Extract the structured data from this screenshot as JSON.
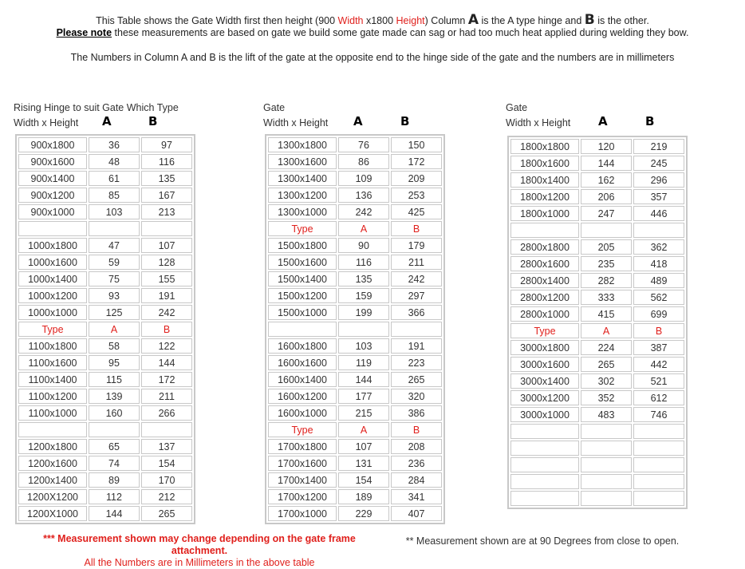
{
  "intro": {
    "line1_a": "This Table shows the Gate Width first then height (900 ",
    "line1_width": "Width",
    "line1_b": " x1800 ",
    "line1_height": "Height",
    "line1_c": ") Column ",
    "line1_A": "A",
    "line1_d": " is the A type hinge and ",
    "line1_B": "B",
    "line1_e": " is the other.",
    "line2_note": "Please note",
    "line2_rest": " these measurements are based on gate we build some gate made can sag or had too much heat applied during welding they bow.",
    "line3": "The Numbers in Column A and B is the lift of the gate at the opposite end to the hinge side of the gate and the numbers are in millimeters"
  },
  "tables": [
    {
      "caption": "Rising Hinge to suit Gate Which Type",
      "subheader": "Width x Height",
      "colA": "A",
      "colB": "B",
      "rows": [
        [
          "900x1800",
          "36",
          "97"
        ],
        [
          "900x1600",
          "48",
          "116"
        ],
        [
          "900x1400",
          "61",
          "135"
        ],
        [
          "900x1200",
          "85",
          "167"
        ],
        [
          "900x1000",
          "103",
          "213"
        ],
        [
          "",
          "",
          ""
        ],
        [
          "1000x1800",
          "47",
          "107"
        ],
        [
          "1000x1600",
          "59",
          "128"
        ],
        [
          "1000x1400",
          "75",
          "155"
        ],
        [
          "1000x1200",
          "93",
          "191"
        ],
        [
          "1000x1000",
          "125",
          "242"
        ],
        [
          "Type",
          "A",
          "B"
        ],
        [
          "1100x1800",
          "58",
          "122"
        ],
        [
          "1100x1600",
          "95",
          "144"
        ],
        [
          "1100x1400",
          "115",
          "172"
        ],
        [
          "1100x1200",
          "139",
          "211"
        ],
        [
          "1100x1000",
          "160",
          "266"
        ],
        [
          "",
          "",
          ""
        ],
        [
          "1200x1800",
          "65",
          "137"
        ],
        [
          "1200x1600",
          "74",
          "154"
        ],
        [
          "1200x1400",
          "89",
          "170"
        ],
        [
          "1200X1200",
          "112",
          "212"
        ],
        [
          "1200X1000",
          "144",
          "265"
        ]
      ]
    },
    {
      "caption": "Gate",
      "subheader": "Width x Height",
      "colA": "A",
      "colB": "B",
      "rows": [
        [
          "1300x1800",
          "76",
          "150"
        ],
        [
          "1300x1600",
          "86",
          "172"
        ],
        [
          "1300x1400",
          "109",
          "209"
        ],
        [
          "1300x1200",
          "136",
          "253"
        ],
        [
          "1300x1000",
          "242",
          "425"
        ],
        [
          "Type",
          "A",
          "B"
        ],
        [
          "1500x1800",
          "90",
          "179"
        ],
        [
          "1500x1600",
          "116",
          "211"
        ],
        [
          "1500x1400",
          "135",
          "242"
        ],
        [
          "1500x1200",
          "159",
          "297"
        ],
        [
          "1500x1000",
          "199",
          "366"
        ],
        [
          "",
          "",
          ""
        ],
        [
          "1600x1800",
          "103",
          "191"
        ],
        [
          "1600x1600",
          "119",
          "223"
        ],
        [
          "1600x1400",
          "144",
          "265"
        ],
        [
          "1600x1200",
          "177",
          "320"
        ],
        [
          "1600x1000",
          "215",
          "386"
        ],
        [
          "Type",
          "A",
          "B"
        ],
        [
          "1700x1800",
          "107",
          "208"
        ],
        [
          "1700x1600",
          "131",
          "236"
        ],
        [
          "1700x1400",
          "154",
          "284"
        ],
        [
          "1700x1200",
          "189",
          "341"
        ],
        [
          "1700x1000",
          "229",
          "407"
        ]
      ]
    },
    {
      "caption": "Gate",
      "subheader": "Width x Height",
      "colA": "A",
      "colB": "B",
      "rows": [
        [
          "1800x1800",
          "120",
          "219"
        ],
        [
          "1800x1600",
          "144",
          "245"
        ],
        [
          "1800x1400",
          "162",
          "296"
        ],
        [
          "1800x1200",
          "206",
          "357"
        ],
        [
          "1800x1000",
          "247",
          "446"
        ],
        [
          "",
          "",
          ""
        ],
        [
          "2800x1800",
          "205",
          "362"
        ],
        [
          "2800x1600",
          "235",
          "418"
        ],
        [
          "2800x1400",
          "282",
          "489"
        ],
        [
          "2800x1200",
          "333",
          "562"
        ],
        [
          "2800x1000",
          "415",
          "699"
        ],
        [
          "Type",
          "A",
          "B"
        ],
        [
          "3000x1800",
          "224",
          "387"
        ],
        [
          "3000x1600",
          "265",
          "442"
        ],
        [
          "3000x1400",
          "302",
          "521"
        ],
        [
          "3000x1200",
          "352",
          "612"
        ],
        [
          "3000x1000",
          "483",
          "746"
        ],
        [
          "",
          "",
          ""
        ],
        [
          "",
          "",
          ""
        ],
        [
          "",
          "",
          ""
        ],
        [
          "",
          "",
          ""
        ],
        [
          "",
          "",
          ""
        ]
      ]
    }
  ],
  "footer": {
    "warning": "*** Measurement shown may change depending on the gate frame attachment.",
    "units": "All the Numbers are in Millimeters in the above table",
    "degrees": "** Measurement shown are at 90 Degrees from close to open."
  },
  "colors": {
    "accent_red": "#e0201c",
    "border": "#c8c8c8"
  }
}
